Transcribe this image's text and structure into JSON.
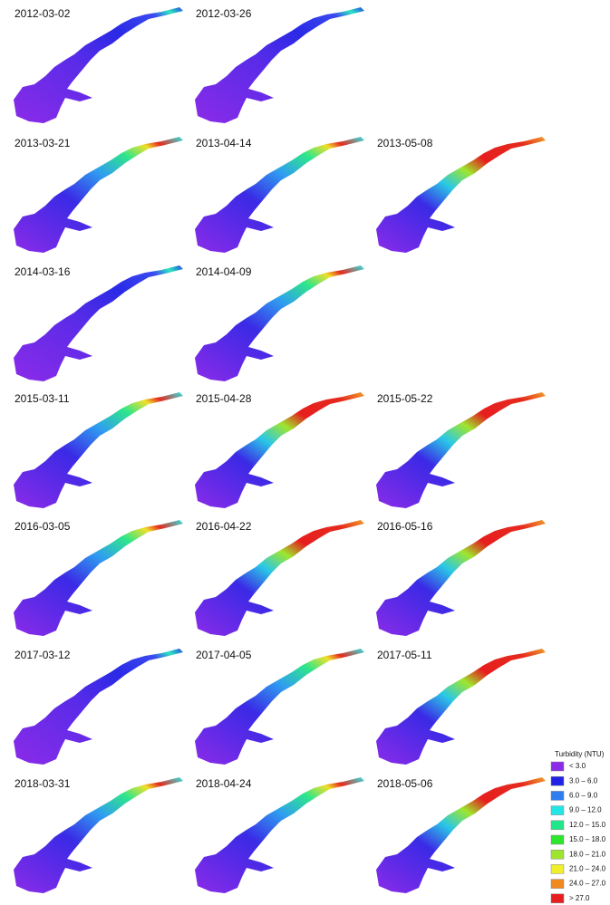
{
  "rows": [
    [
      "2012-03-02",
      "2012-03-26"
    ],
    [
      "2013-03-21",
      "2013-04-14",
      "2013-05-08"
    ],
    [
      "2014-03-16",
      "2014-04-09"
    ],
    [
      "2015-03-11",
      "2015-04-28",
      "2015-05-22"
    ],
    [
      "2016-03-05",
      "2016-04-22",
      "2016-05-16"
    ],
    [
      "2017-03-12",
      "2017-04-05",
      "2017-05-11"
    ],
    [
      "2018-03-31",
      "2018-04-24",
      "2018-05-06"
    ]
  ],
  "legend": {
    "title": "Turbidity (NTU)",
    "items": [
      {
        "label": "< 3.0",
        "color": "#8b2be8"
      },
      {
        "label": "3.0 – 6.0",
        "color": "#2222e6"
      },
      {
        "label": "6.0 – 9.0",
        "color": "#2f7ef0"
      },
      {
        "label": "9.0 – 12.0",
        "color": "#22e6e6"
      },
      {
        "label": "12.0 – 15.0",
        "color": "#22e68a"
      },
      {
        "label": "15.0 – 18.0",
        "color": "#2ee62e"
      },
      {
        "label": "18.0 – 21.0",
        "color": "#9ee62e"
      },
      {
        "label": "21.0 – 24.0",
        "color": "#f0f02a"
      },
      {
        "label": "24.0 – 27.0",
        "color": "#f08a1e"
      },
      {
        "label": "> 27.0",
        "color": "#e61e1e"
      }
    ]
  }
}
